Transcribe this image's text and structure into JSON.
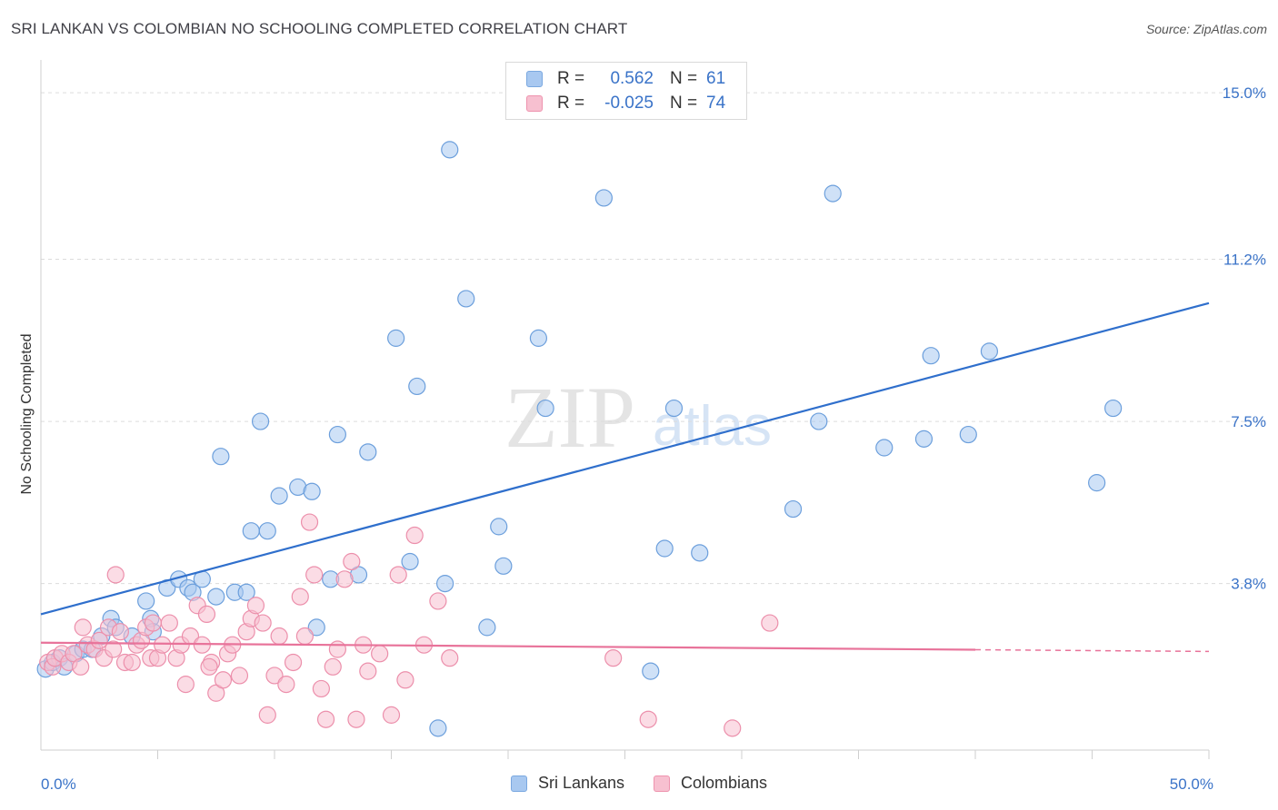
{
  "header": {
    "title": "SRI LANKAN VS COLOMBIAN NO SCHOOLING COMPLETED CORRELATION CHART",
    "source": "Source: ZipAtlas.com"
  },
  "watermark": {
    "part1": "ZIP",
    "part2": "atlas"
  },
  "legend": {
    "rows": [
      {
        "r_label": "R =",
        "r_value": "0.562",
        "n_label": "N =",
        "n_value": "61",
        "color": "#a8c8f0",
        "border": "#7aa8e0"
      },
      {
        "r_label": "R =",
        "r_value": "-0.025",
        "n_label": "N =",
        "n_value": "74",
        "color": "#f7c0d0",
        "border": "#ee93ae"
      }
    ]
  },
  "bottom_legend": {
    "items": [
      {
        "label": "Sri Lankans",
        "color": "#a8c8f0",
        "border": "#7aa8e0"
      },
      {
        "label": "Colombians",
        "color": "#f7c0d0",
        "border": "#ee93ae"
      }
    ]
  },
  "chart_data": {
    "type": "scatter",
    "title": "SRI LANKAN VS COLOMBIAN NO SCHOOLING COMPLETED CORRELATION CHART",
    "ylabel": "No Schooling Completed",
    "xlabel": "",
    "xlim": [
      0,
      50
    ],
    "ylim": [
      0,
      15.5
    ],
    "x_tick_labels": [
      {
        "value": 0,
        "label": "0.0%"
      },
      {
        "value": 50,
        "label": "50.0%"
      }
    ],
    "x_minor_ticks": [
      5,
      10,
      15,
      20,
      25,
      30,
      35,
      40,
      45,
      50
    ],
    "y_ticks": [
      {
        "value": 3.8,
        "label": "3.8%"
      },
      {
        "value": 7.5,
        "label": "7.5%"
      },
      {
        "value": 11.2,
        "label": "11.2%"
      },
      {
        "value": 15.0,
        "label": "15.0%"
      }
    ],
    "series": [
      {
        "name": "Sri Lankans",
        "color": "#a8c8f0",
        "stroke": "#6c9fdc",
        "trend": {
          "x": [
            0,
            50
          ],
          "y": [
            3.1,
            10.2
          ],
          "color": "#2f6fcc",
          "dashed_from": null
        },
        "points": [
          [
            0.2,
            1.85
          ],
          [
            0.5,
            2.0
          ],
          [
            0.8,
            2.1
          ],
          [
            1.0,
            1.9
          ],
          [
            1.5,
            2.2
          ],
          [
            1.8,
            2.3
          ],
          [
            2.2,
            2.3
          ],
          [
            2.6,
            2.6
          ],
          [
            3.0,
            3.0
          ],
          [
            3.2,
            2.8
          ],
          [
            3.9,
            2.6
          ],
          [
            4.7,
            3.0
          ],
          [
            4.8,
            2.7
          ],
          [
            4.5,
            3.4
          ],
          [
            5.4,
            3.7
          ],
          [
            5.9,
            3.9
          ],
          [
            6.3,
            3.7
          ],
          [
            6.5,
            3.6
          ],
          [
            6.9,
            3.9
          ],
          [
            7.5,
            3.5
          ],
          [
            7.7,
            6.7
          ],
          [
            8.3,
            3.6
          ],
          [
            8.8,
            3.6
          ],
          [
            9.4,
            7.5
          ],
          [
            9.0,
            5.0
          ],
          [
            9.7,
            5.0
          ],
          [
            10.2,
            5.8
          ],
          [
            11.0,
            6.0
          ],
          [
            11.6,
            5.9
          ],
          [
            12.4,
            3.9
          ],
          [
            12.7,
            7.2
          ],
          [
            13.6,
            4.0
          ],
          [
            14.0,
            6.8
          ],
          [
            15.2,
            9.4
          ],
          [
            15.8,
            4.3
          ],
          [
            16.1,
            8.3
          ],
          [
            17.0,
            0.5
          ],
          [
            17.3,
            3.8
          ],
          [
            17.5,
            13.7
          ],
          [
            18.2,
            10.3
          ],
          [
            19.1,
            2.8
          ],
          [
            19.6,
            5.1
          ],
          [
            19.8,
            4.2
          ],
          [
            21.3,
            9.4
          ],
          [
            21.6,
            7.8
          ],
          [
            24.1,
            12.6
          ],
          [
            26.1,
            1.8
          ],
          [
            26.7,
            4.6
          ],
          [
            27.1,
            7.8
          ],
          [
            28.2,
            4.5
          ],
          [
            32.2,
            5.5
          ],
          [
            33.3,
            7.5
          ],
          [
            33.9,
            12.7
          ],
          [
            36.1,
            6.9
          ],
          [
            37.8,
            7.1
          ],
          [
            38.1,
            9.0
          ],
          [
            39.7,
            7.2
          ],
          [
            40.6,
            9.1
          ],
          [
            45.2,
            6.1
          ],
          [
            45.9,
            7.8
          ],
          [
            11.8,
            2.8
          ]
        ]
      },
      {
        "name": "Colombians",
        "color": "#f7c0d0",
        "stroke": "#ec8fab",
        "trend": {
          "x": [
            0,
            50
          ],
          "y": [
            2.45,
            2.25
          ],
          "color": "#e8739a",
          "dashed_from": 40
        },
        "points": [
          [
            0.3,
            2.0
          ],
          [
            0.5,
            1.9
          ],
          [
            0.6,
            2.1
          ],
          [
            0.9,
            2.2
          ],
          [
            1.2,
            2.0
          ],
          [
            1.4,
            2.2
          ],
          [
            1.7,
            1.9
          ],
          [
            1.8,
            2.8
          ],
          [
            2.0,
            2.4
          ],
          [
            2.3,
            2.3
          ],
          [
            2.5,
            2.5
          ],
          [
            2.7,
            2.1
          ],
          [
            2.9,
            2.8
          ],
          [
            3.1,
            2.3
          ],
          [
            3.2,
            4.0
          ],
          [
            3.4,
            2.7
          ],
          [
            3.6,
            2.0
          ],
          [
            3.9,
            2.0
          ],
          [
            4.1,
            2.4
          ],
          [
            4.3,
            2.5
          ],
          [
            4.5,
            2.8
          ],
          [
            4.7,
            2.1
          ],
          [
            4.8,
            2.9
          ],
          [
            5.0,
            2.1
          ],
          [
            5.2,
            2.4
          ],
          [
            5.5,
            2.9
          ],
          [
            5.8,
            2.1
          ],
          [
            6.0,
            2.4
          ],
          [
            6.2,
            1.5
          ],
          [
            6.4,
            2.6
          ],
          [
            6.7,
            3.3
          ],
          [
            6.9,
            2.4
          ],
          [
            7.1,
            3.1
          ],
          [
            7.3,
            2.0
          ],
          [
            7.5,
            1.3
          ],
          [
            7.8,
            1.6
          ],
          [
            8.0,
            2.2
          ],
          [
            8.2,
            2.4
          ],
          [
            8.5,
            1.7
          ],
          [
            8.8,
            2.7
          ],
          [
            9.0,
            3.0
          ],
          [
            9.2,
            3.3
          ],
          [
            9.5,
            2.9
          ],
          [
            9.7,
            0.8
          ],
          [
            10.0,
            1.7
          ],
          [
            10.2,
            2.6
          ],
          [
            10.5,
            1.5
          ],
          [
            10.8,
            2.0
          ],
          [
            11.1,
            3.5
          ],
          [
            11.3,
            2.6
          ],
          [
            11.5,
            5.2
          ],
          [
            11.7,
            4.0
          ],
          [
            12.0,
            1.4
          ],
          [
            12.2,
            0.7
          ],
          [
            12.5,
            1.9
          ],
          [
            12.7,
            2.3
          ],
          [
            13.0,
            3.9
          ],
          [
            13.3,
            4.3
          ],
          [
            13.5,
            0.7
          ],
          [
            13.8,
            2.4
          ],
          [
            14.0,
            1.8
          ],
          [
            14.5,
            2.2
          ],
          [
            15.0,
            0.8
          ],
          [
            15.3,
            4.0
          ],
          [
            15.6,
            1.6
          ],
          [
            16.0,
            4.9
          ],
          [
            16.4,
            2.4
          ],
          [
            17.0,
            3.4
          ],
          [
            17.5,
            2.1
          ],
          [
            24.5,
            2.1
          ],
          [
            26.0,
            0.7
          ],
          [
            29.6,
            0.5
          ],
          [
            31.2,
            2.9
          ],
          [
            7.2,
            1.9
          ]
        ]
      }
    ]
  }
}
